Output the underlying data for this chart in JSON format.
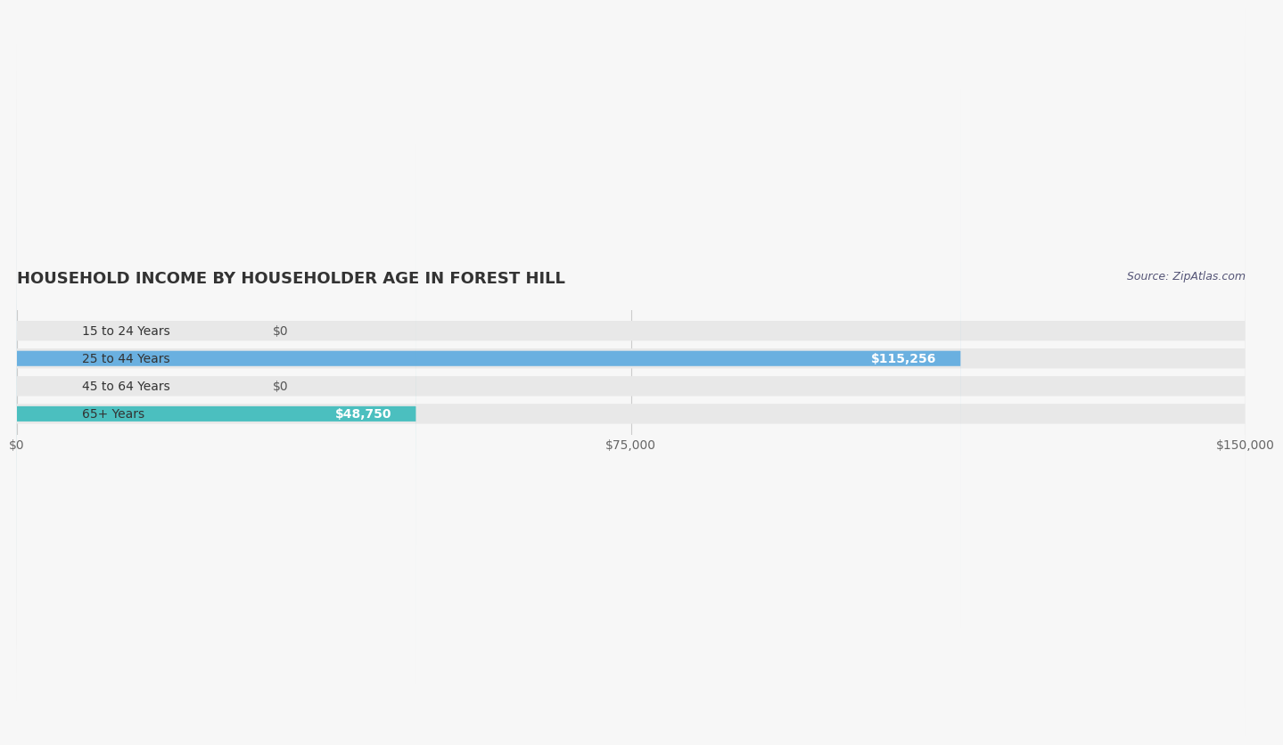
{
  "title": "HOUSEHOLD INCOME BY HOUSEHOLDER AGE IN FOREST HILL",
  "source": "Source: ZipAtlas.com",
  "categories": [
    "15 to 24 Years",
    "25 to 44 Years",
    "45 to 64 Years",
    "65+ Years"
  ],
  "values": [
    0,
    115256,
    0,
    48750
  ],
  "bar_colors": [
    "#f4a0a8",
    "#6ab0e0",
    "#c9a8d4",
    "#4bbfbf"
  ],
  "bar_bg_colors": [
    "#f0f0f0",
    "#f0f0f0",
    "#f0f0f0",
    "#f0f0f0"
  ],
  "label_colors": [
    "#555555",
    "#ffffff",
    "#555555",
    "#555555"
  ],
  "value_labels": [
    "$0",
    "$115,256",
    "$0",
    "$48,750"
  ],
  "xlim": [
    0,
    150000
  ],
  "xticks": [
    0,
    75000,
    150000
  ],
  "xtick_labels": [
    "$0",
    "$75,000",
    "$150,000"
  ],
  "background_color": "#f7f7f7",
  "bar_bg_color": "#e8e8e8",
  "title_fontsize": 13,
  "label_fontsize": 10,
  "value_fontsize": 10,
  "source_fontsize": 9
}
